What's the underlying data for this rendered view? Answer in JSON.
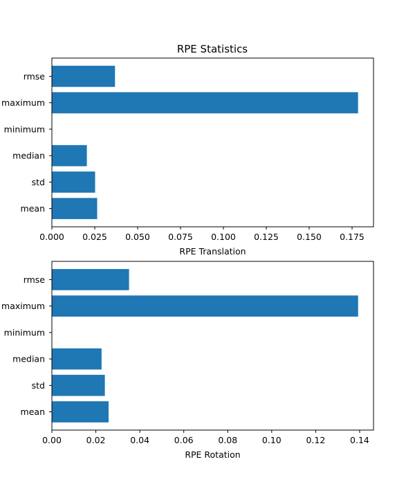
{
  "figure_title": "RPE Statistics",
  "colors": {
    "bar": "#1f77b4",
    "axis": "#000000",
    "background": "#ffffff"
  },
  "chart_data": [
    {
      "type": "bar",
      "orientation": "horizontal",
      "title": "RPE Statistics",
      "xlabel": "RPE Translation",
      "ylabel": "",
      "grid": false,
      "categories": [
        "mean",
        "std",
        "median",
        "minimum",
        "maximum",
        "rmse"
      ],
      "values": [
        0.0264,
        0.0252,
        0.0204,
        0.0001,
        0.1785,
        0.0368
      ],
      "xlim": [
        0,
        0.1875
      ],
      "xticks": [
        0,
        0.025,
        0.05,
        0.075,
        0.1,
        0.125,
        0.15,
        0.175
      ],
      "xtick_labels": [
        "0.000",
        "0.025",
        "0.050",
        "0.075",
        "0.100",
        "0.125",
        "0.150",
        "0.175"
      ]
    },
    {
      "type": "bar",
      "orientation": "horizontal",
      "title": "",
      "xlabel": "RPE Rotation",
      "ylabel": "",
      "grid": false,
      "categories": [
        "mean",
        "std",
        "median",
        "minimum",
        "maximum",
        "rmse"
      ],
      "values": [
        0.0258,
        0.0241,
        0.0226,
        0.0001,
        0.1393,
        0.0351
      ],
      "xlim": [
        0,
        0.1463
      ],
      "xticks": [
        0,
        0.02,
        0.04,
        0.06,
        0.08,
        0.1,
        0.12,
        0.14
      ],
      "xtick_labels": [
        "0.00",
        "0.02",
        "0.04",
        "0.06",
        "0.08",
        "0.10",
        "0.12",
        "0.14"
      ]
    }
  ]
}
